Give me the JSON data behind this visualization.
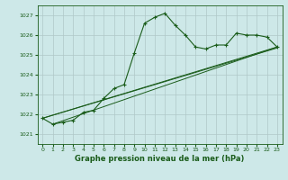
{
  "title": "Graphe pression niveau de la mer (hPa)",
  "xlabel_ticks": [
    0,
    1,
    2,
    3,
    4,
    5,
    6,
    7,
    8,
    9,
    10,
    11,
    12,
    13,
    14,
    15,
    16,
    17,
    18,
    19,
    20,
    21,
    22,
    23
  ],
  "ylim": [
    1020.5,
    1027.5
  ],
  "xlim": [
    -0.5,
    23.5
  ],
  "yticks": [
    1021,
    1022,
    1023,
    1024,
    1025,
    1026,
    1027
  ],
  "background_color": "#cde8e8",
  "grid_color": "#b0c8c8",
  "line_color": "#1a5c1a",
  "line1": {
    "x": [
      0,
      1,
      2,
      3,
      4,
      5,
      6,
      7,
      8,
      9,
      10,
      11,
      12,
      13,
      14,
      15,
      16,
      17,
      18,
      19,
      20,
      21,
      22,
      23
    ],
    "y": [
      1021.8,
      1021.5,
      1021.6,
      1021.7,
      1022.1,
      1022.2,
      1022.8,
      1023.3,
      1023.5,
      1025.1,
      1026.6,
      1026.9,
      1027.1,
      1026.5,
      1026.0,
      1025.4,
      1025.3,
      1025.5,
      1025.5,
      1026.1,
      1026.0,
      1026.0,
      1025.9,
      1025.4
    ]
  },
  "line2": {
    "x": [
      0,
      23
    ],
    "y": [
      1021.8,
      1025.4
    ]
  },
  "line3": {
    "x": [
      0,
      23
    ],
    "y": [
      1021.8,
      1025.4
    ]
  },
  "line4": {
    "x": [
      1,
      23
    ],
    "y": [
      1021.5,
      1025.4
    ]
  },
  "line5": {
    "x": [
      1,
      23
    ],
    "y": [
      1021.5,
      1025.4
    ]
  }
}
